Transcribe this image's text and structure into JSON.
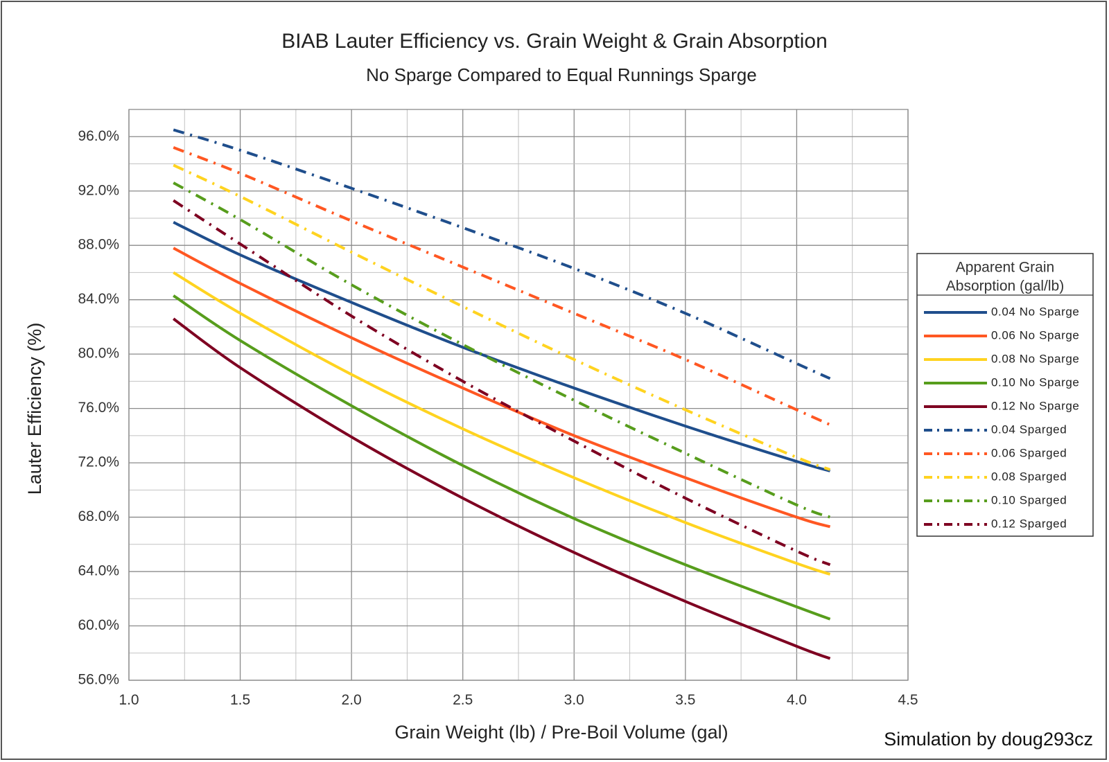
{
  "chart_data": {
    "type": "line",
    "title": "BIAB Lauter Efficiency vs. Grain Weight & Grain Absorption",
    "subtitle": "No Sparge Compared to Equal Runnings Sparge",
    "xlabel": "Grain Weight (lb) / Pre-Boil Volume (gal)",
    "ylabel": "Lauter Efficiency (%)",
    "xlim": [
      1.0,
      4.5
    ],
    "ylim": [
      56.0,
      98.0
    ],
    "x_ticks": [
      "1.0",
      "1.5",
      "2.0",
      "2.5",
      "3.0",
      "3.5",
      "4.0",
      "4.5"
    ],
    "y_ticks": [
      "56.0%",
      "60.0%",
      "64.0%",
      "68.0%",
      "72.0%",
      "76.0%",
      "80.0%",
      "84.0%",
      "88.0%",
      "92.0%",
      "96.0%"
    ],
    "grid": true,
    "legend_title": "Apparent Grain Absorption  (gal/lb)",
    "legend_placement": "right",
    "credit": "Simulation by doug293cz",
    "x": [
      1.2,
      1.5,
      2.0,
      2.5,
      3.0,
      3.5,
      4.0,
      4.15
    ],
    "series": [
      {
        "name": "0.04 No Sparge",
        "color": "#1f4e8c",
        "style": "solid",
        "values": [
          89.7,
          87.3,
          83.8,
          80.5,
          77.5,
          74.7,
          72.1,
          71.4
        ]
      },
      {
        "name": "0.06 No Sparge",
        "color": "#ff5722",
        "style": "solid",
        "values": [
          87.8,
          85.2,
          81.2,
          77.5,
          74.0,
          70.9,
          68.0,
          67.3
        ]
      },
      {
        "name": "0.08 No Sparge",
        "color": "#ffd320",
        "style": "solid",
        "values": [
          86.0,
          83.0,
          78.5,
          74.5,
          70.9,
          67.6,
          64.6,
          63.8
        ]
      },
      {
        "name": "0.10 No Sparge",
        "color": "#579d1c",
        "style": "solid",
        "values": [
          84.3,
          81.0,
          76.2,
          71.8,
          67.9,
          64.5,
          61.4,
          60.5
        ]
      },
      {
        "name": "0.12 No Sparge",
        "color": "#7e0021",
        "style": "solid",
        "values": [
          82.6,
          79.0,
          73.9,
          69.4,
          65.4,
          61.8,
          58.5,
          57.6
        ]
      },
      {
        "name": "0.04 Sparged",
        "color": "#1f4e8c",
        "style": "dashdot",
        "values": [
          96.5,
          95.0,
          92.2,
          89.3,
          86.3,
          83.0,
          79.3,
          78.2
        ]
      },
      {
        "name": "0.06 Sparged",
        "color": "#ff5722",
        "style": "dashdot",
        "values": [
          95.2,
          93.3,
          89.8,
          86.4,
          83.0,
          79.6,
          75.9,
          74.8
        ]
      },
      {
        "name": "0.08 Sparged",
        "color": "#ffd320",
        "style": "dashdot",
        "values": [
          93.9,
          91.6,
          87.5,
          83.5,
          79.6,
          75.9,
          72.4,
          71.5
        ]
      },
      {
        "name": "0.10 Sparged",
        "color": "#579d1c",
        "style": "dashdot",
        "values": [
          92.6,
          89.9,
          85.1,
          80.7,
          76.6,
          72.7,
          68.9,
          68.0
        ]
      },
      {
        "name": "0.12 Sparged",
        "color": "#7e0021",
        "style": "dashdot",
        "values": [
          91.3,
          88.1,
          82.8,
          78.0,
          73.6,
          69.4,
          65.5,
          64.5
        ]
      }
    ]
  }
}
